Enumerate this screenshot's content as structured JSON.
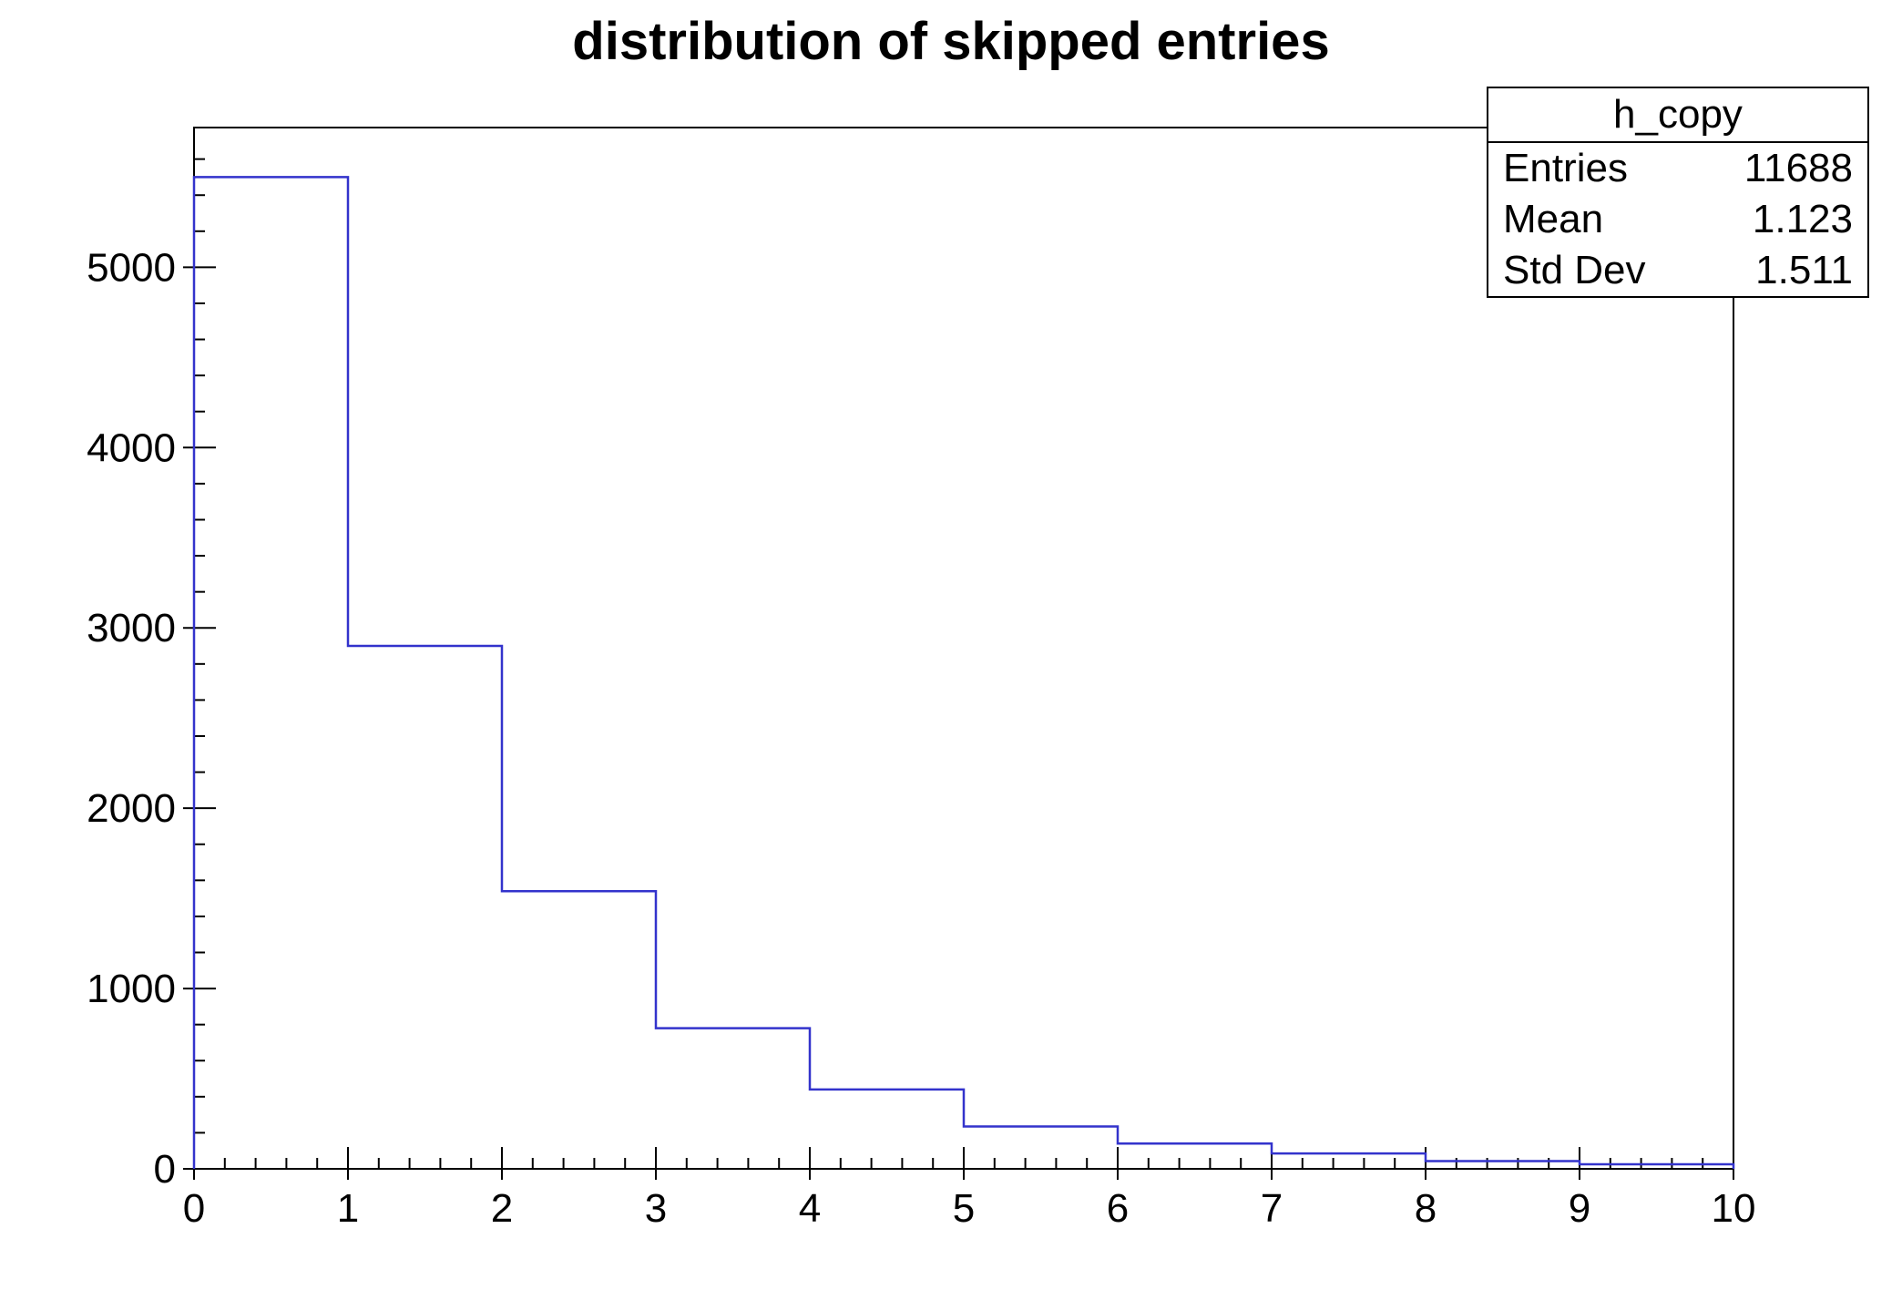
{
  "title": "distribution of skipped entries",
  "stats_box": {
    "title": "h_copy",
    "rows": [
      {
        "label": "Entries",
        "value": "11688"
      },
      {
        "label": "Mean",
        "value": "1.123"
      },
      {
        "label": "Std Dev",
        "value": "1.511"
      }
    ]
  },
  "chart_data": {
    "type": "bar",
    "subtype": "step-histogram",
    "title": "distribution of skipped entries",
    "xlabel": "",
    "ylabel": "",
    "bin_edges": [
      0,
      1,
      2,
      3,
      4,
      5,
      6,
      7,
      8,
      9,
      10
    ],
    "values": [
      5500,
      2900,
      1540,
      780,
      440,
      235,
      140,
      85,
      43,
      25
    ],
    "xlim": [
      0,
      10
    ],
    "ylim": [
      0,
      5775
    ],
    "x_ticks": [
      0,
      1,
      2,
      3,
      4,
      5,
      6,
      7,
      8,
      9,
      10
    ],
    "x_tick_labels": [
      "0",
      "1",
      "2",
      "3",
      "4",
      "5",
      "6",
      "7",
      "8",
      "9",
      "10"
    ],
    "y_ticks": [
      0,
      1000,
      2000,
      3000,
      4000,
      5000
    ],
    "y_tick_labels": [
      "0",
      "1000",
      "2000",
      "3000",
      "4000",
      "5000"
    ],
    "x_minor_step": 0.2,
    "y_minor_step": 200,
    "grid": false,
    "legend_position": "stats box, top right",
    "line_color": "#3333cc",
    "axis_color": "#000000",
    "background_color": "#ffffff"
  }
}
